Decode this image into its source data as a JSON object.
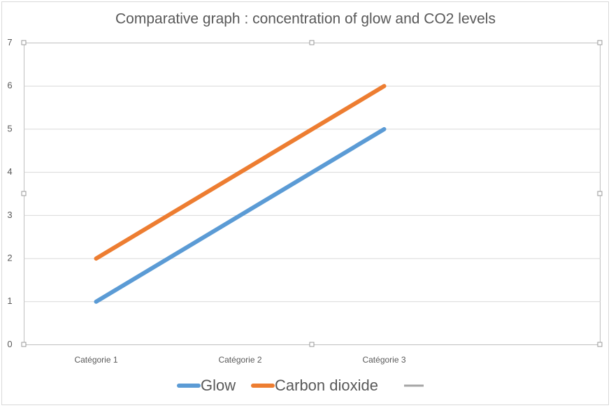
{
  "chart_data": {
    "type": "line",
    "title": "Comparative graph : concentration of glow and CO2 levels",
    "categories": [
      "Catégorie 1",
      "Catégorie 2",
      "Catégorie 3",
      null
    ],
    "series": [
      {
        "name": "Glow",
        "color": "#5b9bd5",
        "values": [
          1,
          3,
          5,
          null
        ]
      },
      {
        "name": "Carbon dioxide",
        "color": "#ed7d31",
        "values": [
          2,
          4,
          6,
          null
        ]
      }
    ],
    "ylim": [
      0,
      7
    ],
    "yticks": [
      0,
      1,
      2,
      3,
      4,
      5,
      6,
      7
    ],
    "grid": true,
    "legend": "bottom"
  }
}
